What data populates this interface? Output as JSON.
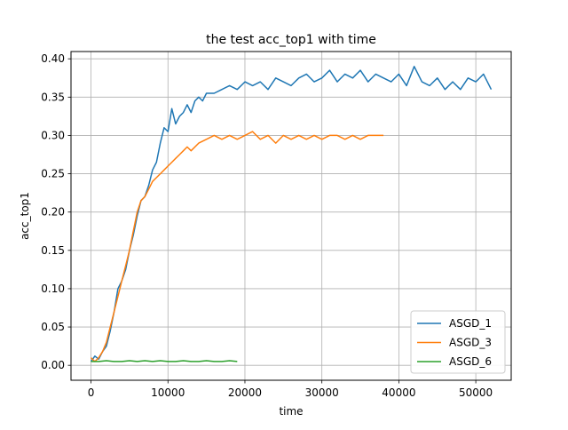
{
  "chart_data": {
    "type": "line",
    "title": "the test acc_top1 with time",
    "xlabel": "time",
    "ylabel": "acc_top1",
    "xlim": [
      -2600,
      54600
    ],
    "ylim": [
      -0.0195,
      0.4095
    ],
    "xticks": [
      0,
      10000,
      20000,
      30000,
      40000,
      50000
    ],
    "yticks": [
      0.0,
      0.05,
      0.1,
      0.15,
      0.2,
      0.25,
      0.3,
      0.35,
      0.4
    ],
    "xtick_labels": [
      "0",
      "10000",
      "20000",
      "30000",
      "40000",
      "50000"
    ],
    "ytick_labels": [
      "0.00",
      "0.05",
      "0.10",
      "0.15",
      "0.20",
      "0.25",
      "0.30",
      "0.35",
      "0.40"
    ],
    "grid": true,
    "legend_position": "lower-right",
    "series": [
      {
        "name": "ASGD_1",
        "color": "#1f77b4",
        "x": [
          0,
          500,
          1000,
          1500,
          2000,
          2500,
          3000,
          3500,
          4000,
          4500,
          5000,
          5500,
          6000,
          6500,
          7000,
          7500,
          8000,
          8500,
          9000,
          9500,
          10000,
          10500,
          11000,
          11500,
          12000,
          12500,
          13000,
          13500,
          14000,
          14500,
          15000,
          16000,
          17000,
          18000,
          19000,
          20000,
          21000,
          22000,
          23000,
          24000,
          25000,
          26000,
          27000,
          28000,
          29000,
          30000,
          31000,
          32000,
          33000,
          34000,
          35000,
          36000,
          37000,
          38000,
          39000,
          40000,
          41000,
          42000,
          43000,
          44000,
          45000,
          46000,
          47000,
          48000,
          49000,
          50000,
          51000,
          52000
        ],
        "y": [
          0.005,
          0.012,
          0.008,
          0.018,
          0.025,
          0.045,
          0.07,
          0.1,
          0.11,
          0.125,
          0.15,
          0.17,
          0.195,
          0.215,
          0.22,
          0.235,
          0.255,
          0.265,
          0.29,
          0.31,
          0.305,
          0.335,
          0.315,
          0.325,
          0.33,
          0.34,
          0.33,
          0.345,
          0.35,
          0.345,
          0.355,
          0.355,
          0.36,
          0.365,
          0.36,
          0.37,
          0.365,
          0.37,
          0.36,
          0.375,
          0.37,
          0.365,
          0.375,
          0.38,
          0.37,
          0.375,
          0.385,
          0.37,
          0.38,
          0.375,
          0.385,
          0.37,
          0.38,
          0.375,
          0.37,
          0.38,
          0.365,
          0.39,
          0.37,
          0.365,
          0.375,
          0.36,
          0.37,
          0.36,
          0.375,
          0.37,
          0.38,
          0.36
        ]
      },
      {
        "name": "ASGD_3",
        "color": "#ff7f0e",
        "x": [
          0,
          500,
          1000,
          1500,
          2000,
          2500,
          3000,
          3500,
          4000,
          4500,
          5000,
          5500,
          6000,
          6500,
          7000,
          7500,
          8000,
          8500,
          9000,
          9500,
          10000,
          10500,
          11000,
          11500,
          12000,
          12500,
          13000,
          14000,
          15000,
          16000,
          17000,
          18000,
          19000,
          20000,
          21000,
          22000,
          23000,
          24000,
          25000,
          26000,
          27000,
          28000,
          29000,
          30000,
          31000,
          32000,
          33000,
          34000,
          35000,
          36000,
          37000,
          38000
        ],
        "y": [
          0.01,
          0.005,
          0.01,
          0.018,
          0.03,
          0.05,
          0.07,
          0.09,
          0.11,
          0.13,
          0.15,
          0.175,
          0.2,
          0.215,
          0.22,
          0.23,
          0.24,
          0.245,
          0.25,
          0.255,
          0.26,
          0.265,
          0.27,
          0.275,
          0.28,
          0.285,
          0.28,
          0.29,
          0.295,
          0.3,
          0.295,
          0.3,
          0.295,
          0.3,
          0.305,
          0.295,
          0.3,
          0.29,
          0.3,
          0.295,
          0.3,
          0.295,
          0.3,
          0.295,
          0.3,
          0.3,
          0.295,
          0.3,
          0.295,
          0.3,
          0.3,
          0.3
        ]
      },
      {
        "name": "ASGD_6",
        "color": "#2ca02c",
        "x": [
          0,
          1000,
          2000,
          3000,
          4000,
          5000,
          6000,
          7000,
          8000,
          9000,
          10000,
          11000,
          12000,
          13000,
          14000,
          15000,
          16000,
          17000,
          18000,
          19000
        ],
        "y": [
          0.005,
          0.005,
          0.006,
          0.005,
          0.005,
          0.006,
          0.005,
          0.006,
          0.005,
          0.006,
          0.005,
          0.005,
          0.006,
          0.005,
          0.005,
          0.006,
          0.005,
          0.005,
          0.006,
          0.005
        ]
      }
    ]
  }
}
